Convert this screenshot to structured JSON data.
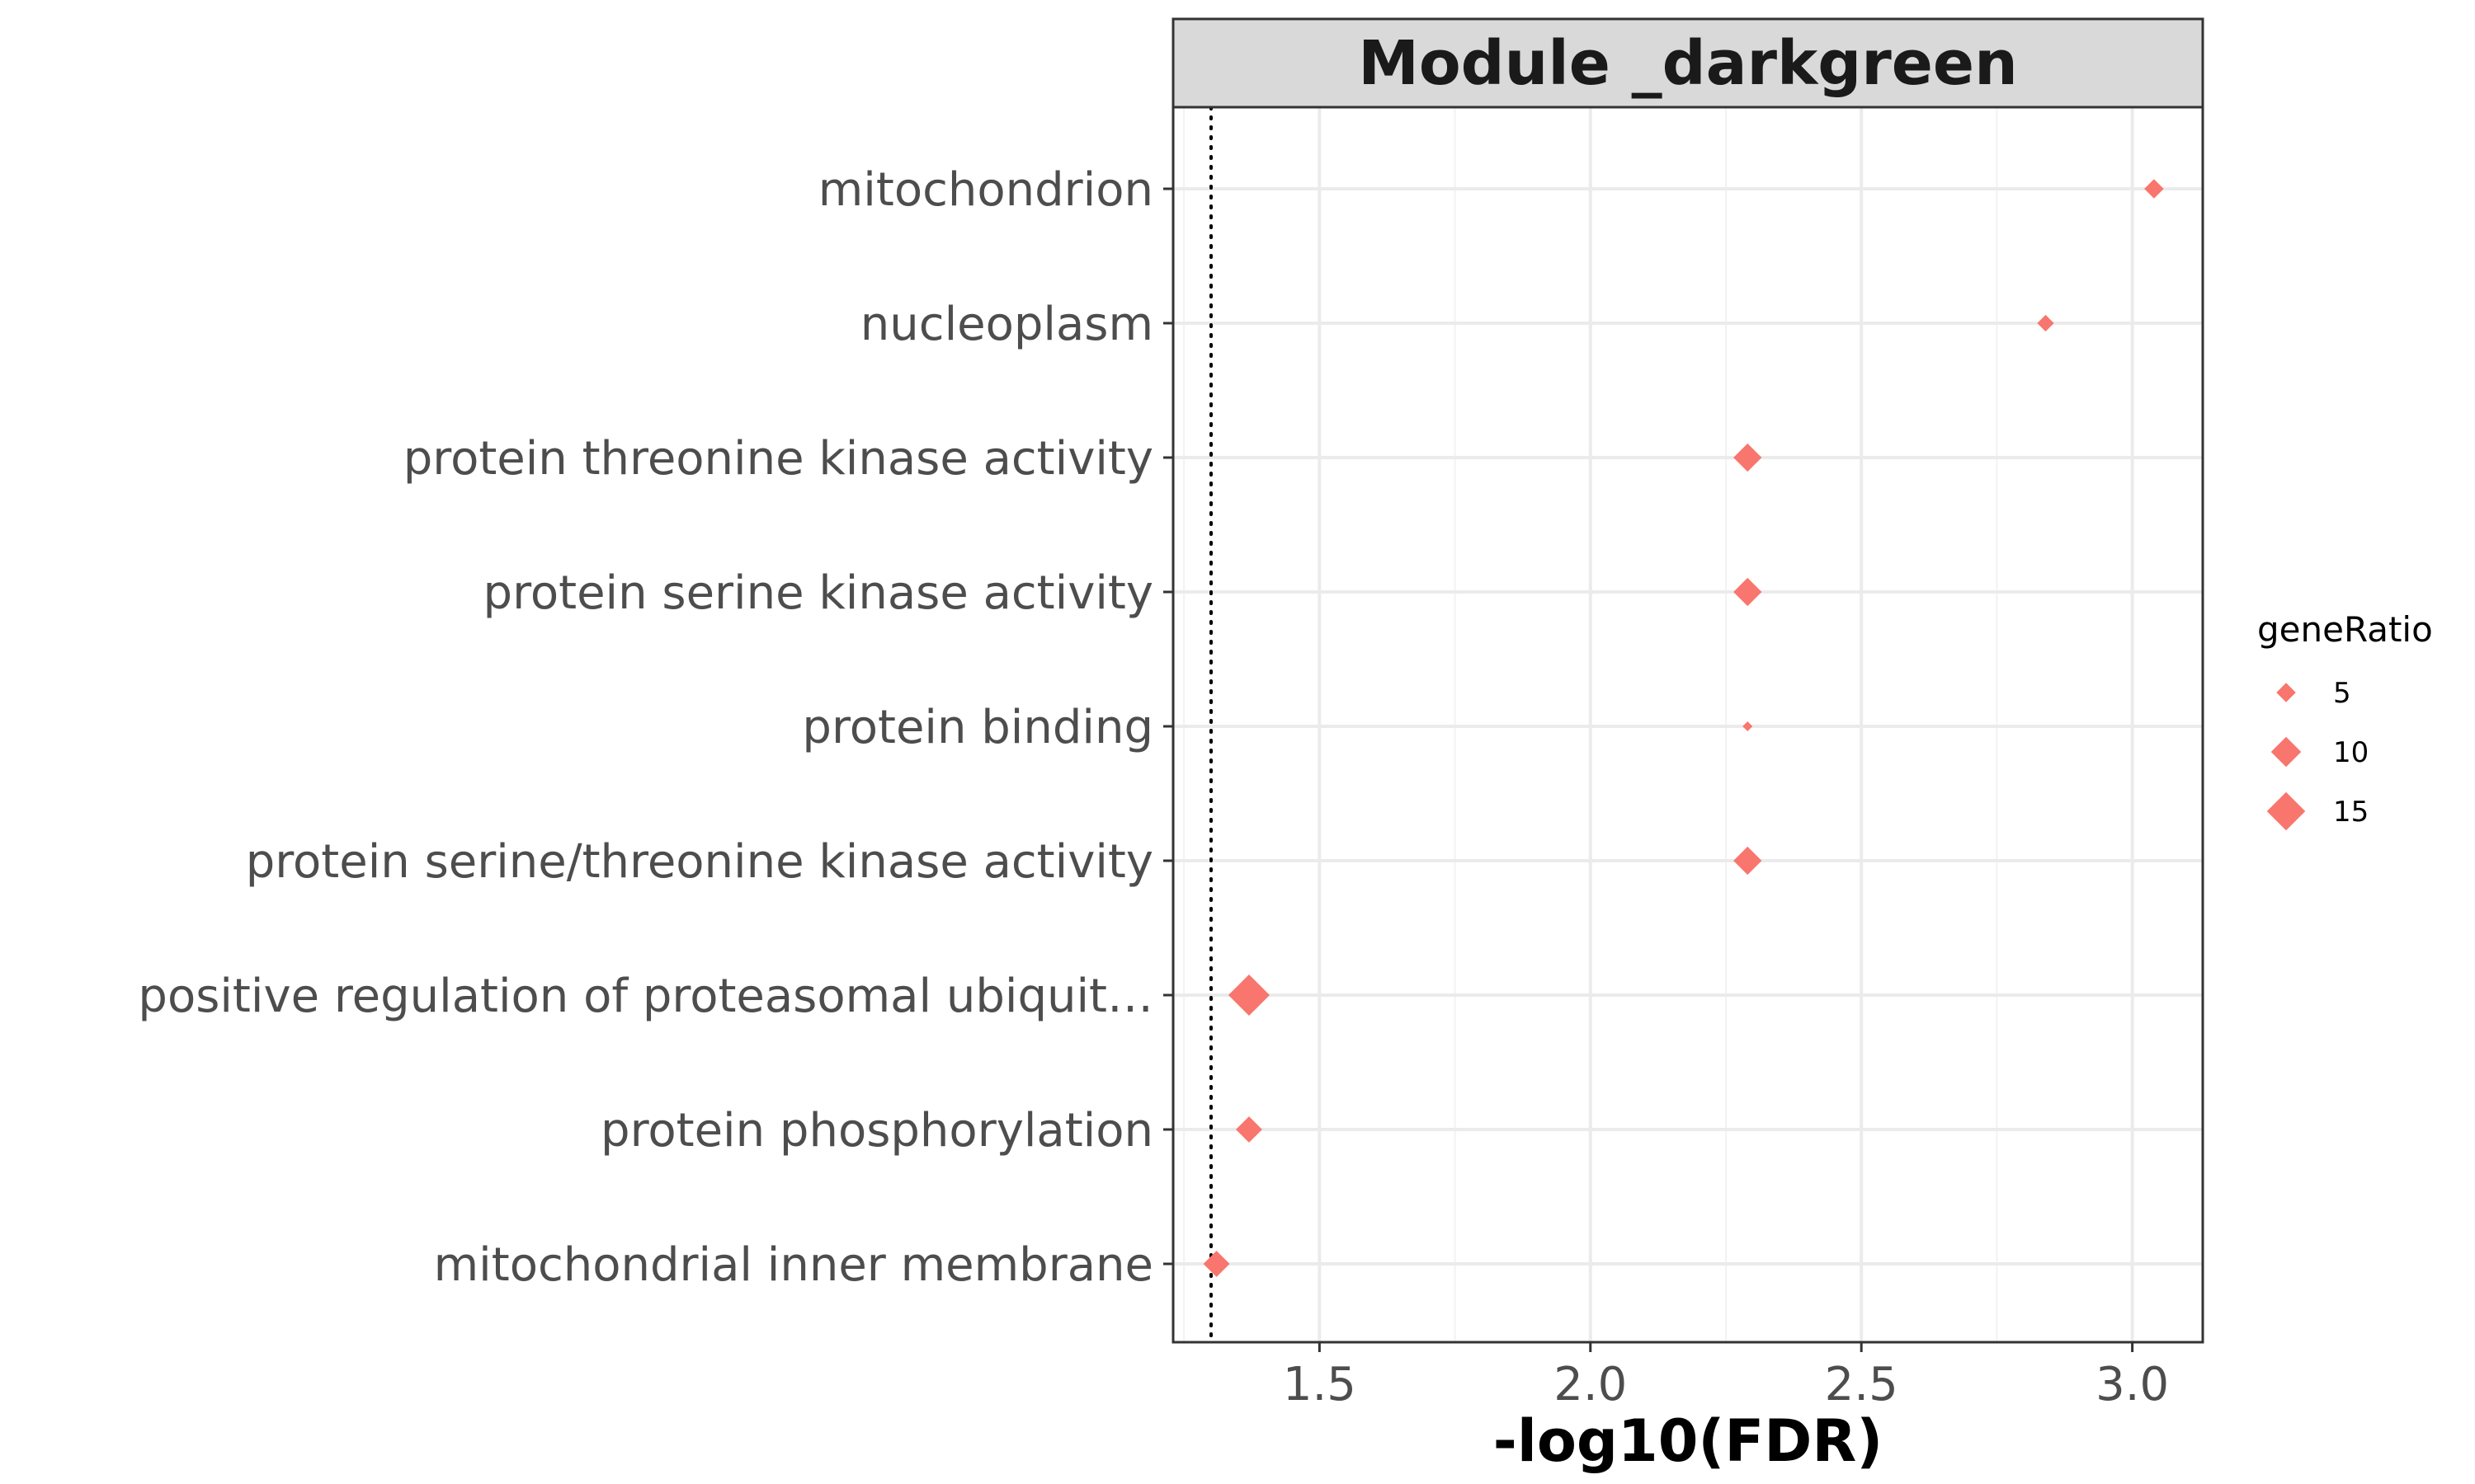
{
  "chart_data": {
    "type": "scatter",
    "title": "Module _darkgreen",
    "xlabel": "-log10(FDR)",
    "ylabel": "",
    "xlim": [
      1.23,
      3.13
    ],
    "xticks": [
      1.5,
      2.0,
      2.5,
      3.0
    ],
    "xtick_labels": [
      "1.5",
      "2.0",
      "2.5",
      "3.0"
    ],
    "threshold_line": 1.3,
    "grid": true,
    "marker": "diamond",
    "point_color": "#f8766d",
    "categories": [
      "mitochondrion",
      "nucleoplasm",
      "protein threonine kinase activity",
      "protein serine kinase activity",
      "protein binding",
      "protein serine/threonine kinase activity",
      "positive regulation of proteasomal ubiquit…",
      "protein phosphorylation",
      "mitochondrial inner membrane"
    ],
    "points": [
      {
        "category": "mitochondrion",
        "x": 3.04,
        "geneRatio": 5
      },
      {
        "category": "nucleoplasm",
        "x": 2.84,
        "geneRatio": 4
      },
      {
        "category": "protein threonine kinase activity",
        "x": 2.29,
        "geneRatio": 9
      },
      {
        "category": "protein serine kinase activity",
        "x": 2.29,
        "geneRatio": 9
      },
      {
        "category": "protein binding",
        "x": 2.29,
        "geneRatio": 2
      },
      {
        "category": "protein serine/threonine kinase activity",
        "x": 2.29,
        "geneRatio": 9
      },
      {
        "category": "positive regulation of proteasomal ubiquit…",
        "x": 1.37,
        "geneRatio": 17
      },
      {
        "category": "protein phosphorylation",
        "x": 1.37,
        "geneRatio": 8
      },
      {
        "category": "mitochondrial inner membrane",
        "x": 1.31,
        "geneRatio": 8
      }
    ],
    "legend": {
      "title": "geneRatio",
      "position": "right",
      "entries": [
        {
          "label": "5",
          "value": 5
        },
        {
          "label": "10",
          "value": 10
        },
        {
          "label": "15",
          "value": 15
        }
      ]
    },
    "size_range": [
      2,
      17
    ]
  }
}
